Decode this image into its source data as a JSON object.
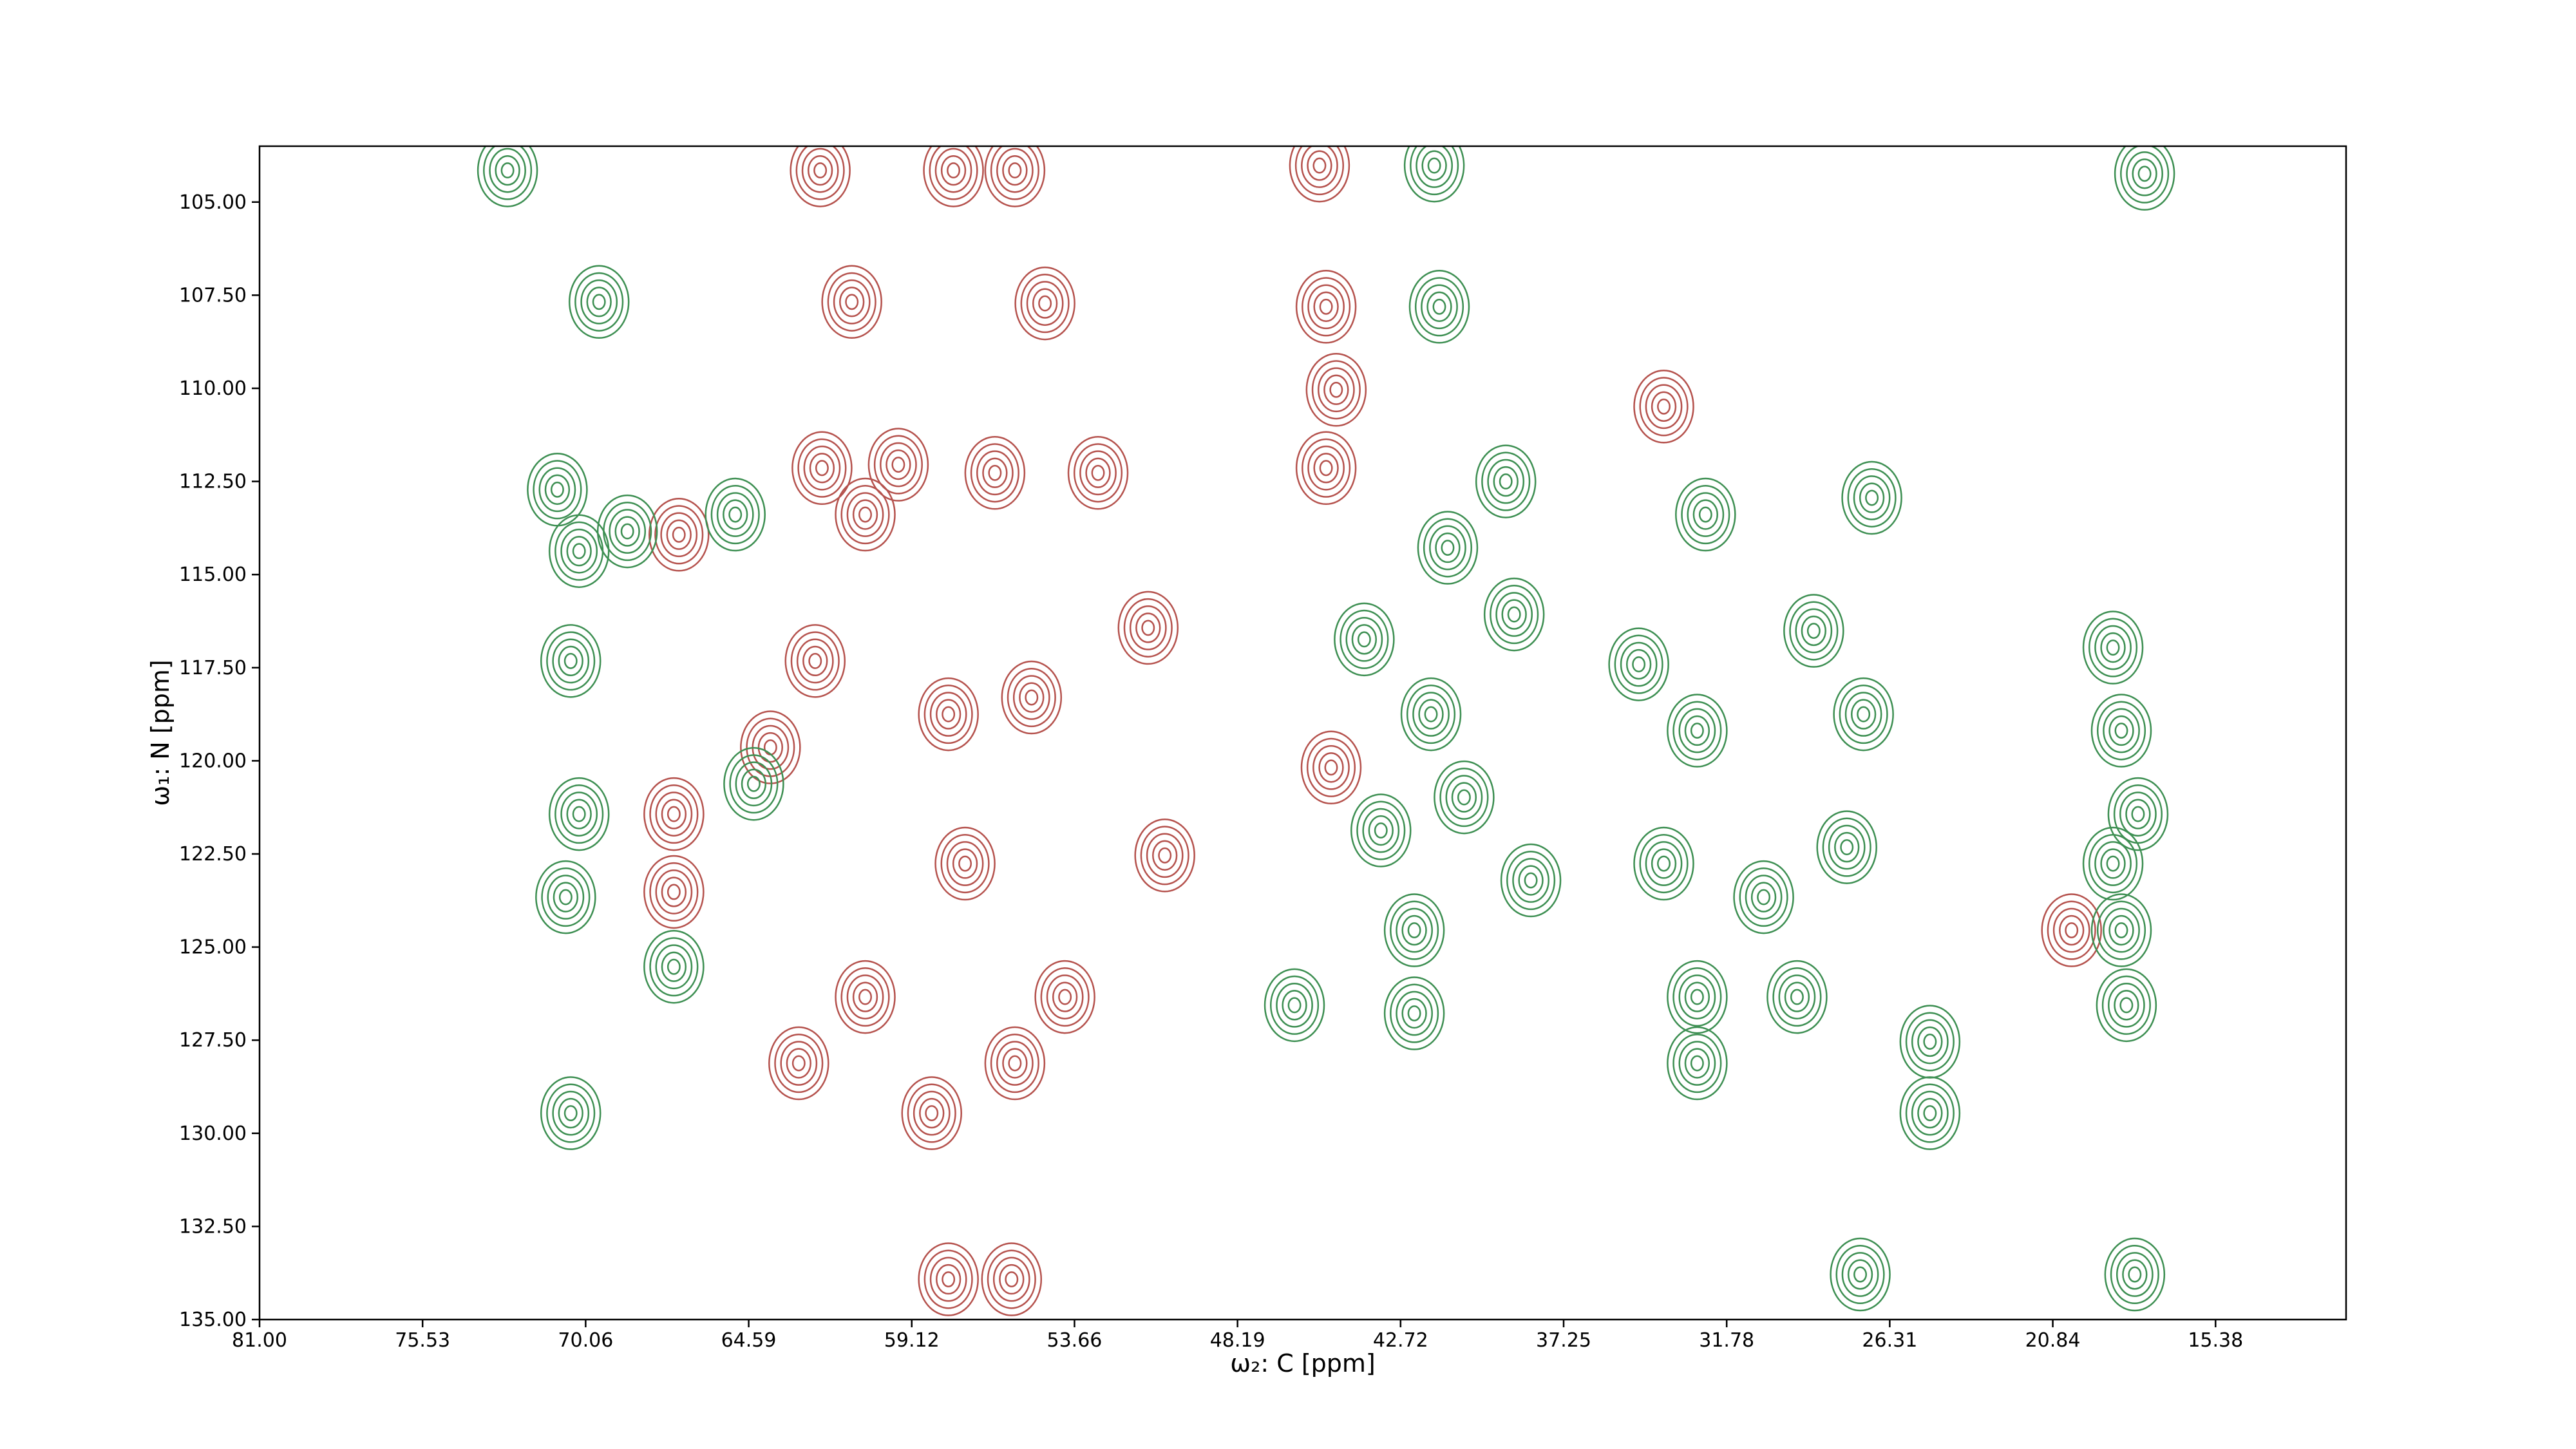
{
  "chart_data": {
    "type": "contour",
    "xlabel": "ω₂: C [ppm]",
    "ylabel": "ω₁: N [ppm]",
    "xlim": [
      81,
      11
    ],
    "ylim": [
      135,
      103.5
    ],
    "xticks": [
      {
        "value": 81,
        "label": "81.00"
      },
      {
        "value": 75.53,
        "label": "75.53"
      },
      {
        "value": 70.06,
        "label": "70.06"
      },
      {
        "value": 64.59,
        "label": "64.59"
      },
      {
        "value": 59.12,
        "label": "59.12"
      },
      {
        "value": 53.66,
        "label": "53.66"
      },
      {
        "value": 48.19,
        "label": "48.19"
      },
      {
        "value": 42.72,
        "label": "42.72"
      },
      {
        "value": 37.25,
        "label": "37.25"
      },
      {
        "value": 31.78,
        "label": "31.78"
      },
      {
        "value": 26.31,
        "label": "26.31"
      },
      {
        "value": 20.84,
        "label": "20.84"
      },
      {
        "value": 15.38,
        "label": "15.38"
      }
    ],
    "yticks": [
      {
        "value": 105,
        "label": "105.00"
      },
      {
        "value": 107.5,
        "label": "107.50"
      },
      {
        "value": 110,
        "label": "110.00"
      },
      {
        "value": 112.5,
        "label": "112.50"
      },
      {
        "value": 115,
        "label": "115.00"
      },
      {
        "value": 117.5,
        "label": "117.50"
      },
      {
        "value": 120,
        "label": "120.00"
      },
      {
        "value": 122.5,
        "label": "122.50"
      },
      {
        "value": 125,
        "label": "125.00"
      },
      {
        "value": 127.5,
        "label": "127.50"
      },
      {
        "value": 130,
        "label": "130.00"
      },
      {
        "value": 132.5,
        "label": "132.50"
      },
      {
        "value": 135,
        "label": "135.00"
      }
    ],
    "series": [
      {
        "color": "#b5524d",
        "x": [
          62.19,
          61.13,
          54.65,
          57.72,
          55.66,
          45.44,
          45.22,
          44.88,
          45.22,
          66.93,
          62.13,
          59.57,
          56.33,
          52.87,
          62.36,
          51.19,
          60.68,
          57.89,
          55.1,
          50.63,
          57.33,
          53.98,
          60.68,
          62.91,
          58.45,
          55.66,
          67.1,
          67.1,
          45.05,
          63.86,
          57.89,
          55.77,
          33.89,
          20.21
        ],
        "y": [
          104.15,
          107.68,
          107.72,
          104.15,
          104.15,
          104.02,
          107.81,
          110.04,
          112.14,
          113.93,
          112.14,
          112.05,
          112.27,
          112.27,
          117.32,
          116.43,
          113.39,
          118.75,
          118.3,
          122.54,
          122.76,
          126.34,
          126.34,
          128.12,
          129.46,
          128.12,
          121.43,
          123.52,
          120.18,
          119.64,
          133.92,
          133.92,
          110.49,
          124.55
        ]
      },
      {
        "color": "#3d8f52",
        "x": [
          72.68,
          69.61,
          71.01,
          70.28,
          68.66,
          65.04,
          70.56,
          41.42,
          39.19,
          41.14,
          38.91,
          43.94,
          41.7,
          43.38,
          40.59,
          42.26,
          42.26,
          38.35,
          34.73,
          32.77,
          28.86,
          27.19,
          26.91,
          32.49,
          33.89,
          30.54,
          27.75,
          32.77,
          29.42,
          32.77,
          24.96,
          24.96,
          18.82,
          18.54,
          17.98,
          18.82,
          18.54,
          18.37,
          67.1,
          70.73,
          70.28,
          64.42,
          70.56,
          27.3,
          18.09,
          46.28,
          17.76,
          41.59
        ],
        "y": [
          104.15,
          107.68,
          112.72,
          114.37,
          113.84,
          113.39,
          117.32,
          107.81,
          112.5,
          114.28,
          116.07,
          116.74,
          118.75,
          121.87,
          120.98,
          124.55,
          126.78,
          123.21,
          117.41,
          119.19,
          116.51,
          118.75,
          112.94,
          113.39,
          122.76,
          123.66,
          122.32,
          126.34,
          126.34,
          128.12,
          127.54,
          129.46,
          116.96,
          119.19,
          121.43,
          122.76,
          124.55,
          126.56,
          125.53,
          123.66,
          121.43,
          120.62,
          129.46,
          133.79,
          133.79,
          126.56,
          104.24,
          104.02
        ]
      }
    ]
  }
}
